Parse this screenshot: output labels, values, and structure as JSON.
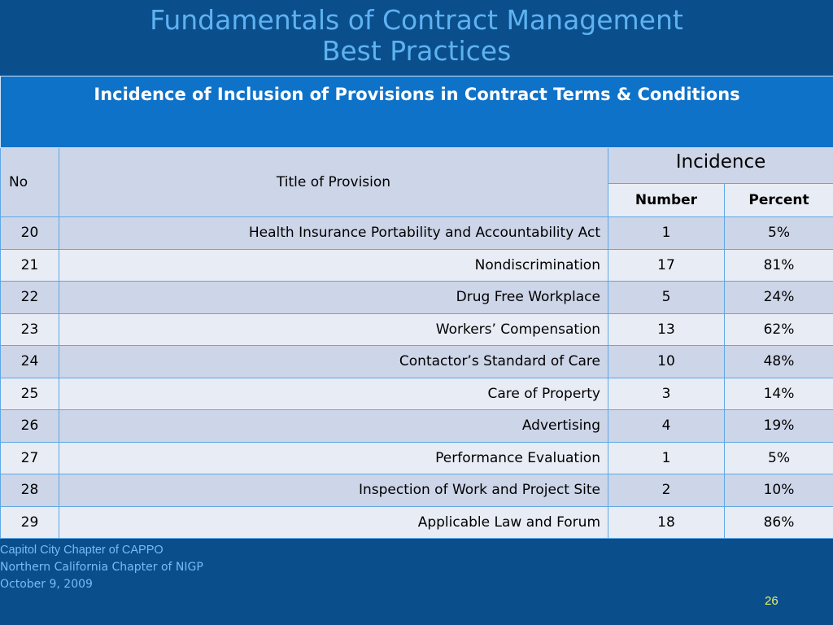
{
  "slide": {
    "title_line1": "Fundamentals of Contract Management",
    "title_line2": "Best Practices",
    "page_number": "26"
  },
  "table": {
    "banner": "Incidence of Inclusion of Provisions in Contract Terms  & Conditions",
    "headers": {
      "no": "No",
      "title": "Title of Provision",
      "incidence": "Incidence",
      "number": "Number",
      "percent": "Percent"
    },
    "rows": [
      {
        "no": "20",
        "title": "Health Insurance Portability and Accountability Act",
        "number": "1",
        "percent": "5%"
      },
      {
        "no": "21",
        "title": "Nondiscrimination",
        "number": "17",
        "percent": "81%"
      },
      {
        "no": "22",
        "title": "Drug Free Workplace",
        "number": "5",
        "percent": "24%"
      },
      {
        "no": "23",
        "title": "Workers’ Compensation",
        "number": "13",
        "percent": "62%"
      },
      {
        "no": "24",
        "title": "Contactor’s Standard of Care",
        "number": "10",
        "percent": "48%"
      },
      {
        "no": "25",
        "title": "Care of Property",
        "number": "3",
        "percent": "14%"
      },
      {
        "no": "26",
        "title": "Advertising",
        "number": "4",
        "percent": "19%"
      },
      {
        "no": "27",
        "title": "Performance  Evaluation",
        "number": "1",
        "percent": "5%"
      },
      {
        "no": "28",
        "title": "Inspection of Work and Project Site",
        "number": "2",
        "percent": "10%"
      },
      {
        "no": "29",
        "title": "Applicable Law and Forum",
        "number": "18",
        "percent": "86%"
      }
    ]
  },
  "footer": {
    "line1": "Capitol City Chapter of CAPPO",
    "line2": "Northern California Chapter of NIGP",
    "line3": "October 9, 2009"
  }
}
